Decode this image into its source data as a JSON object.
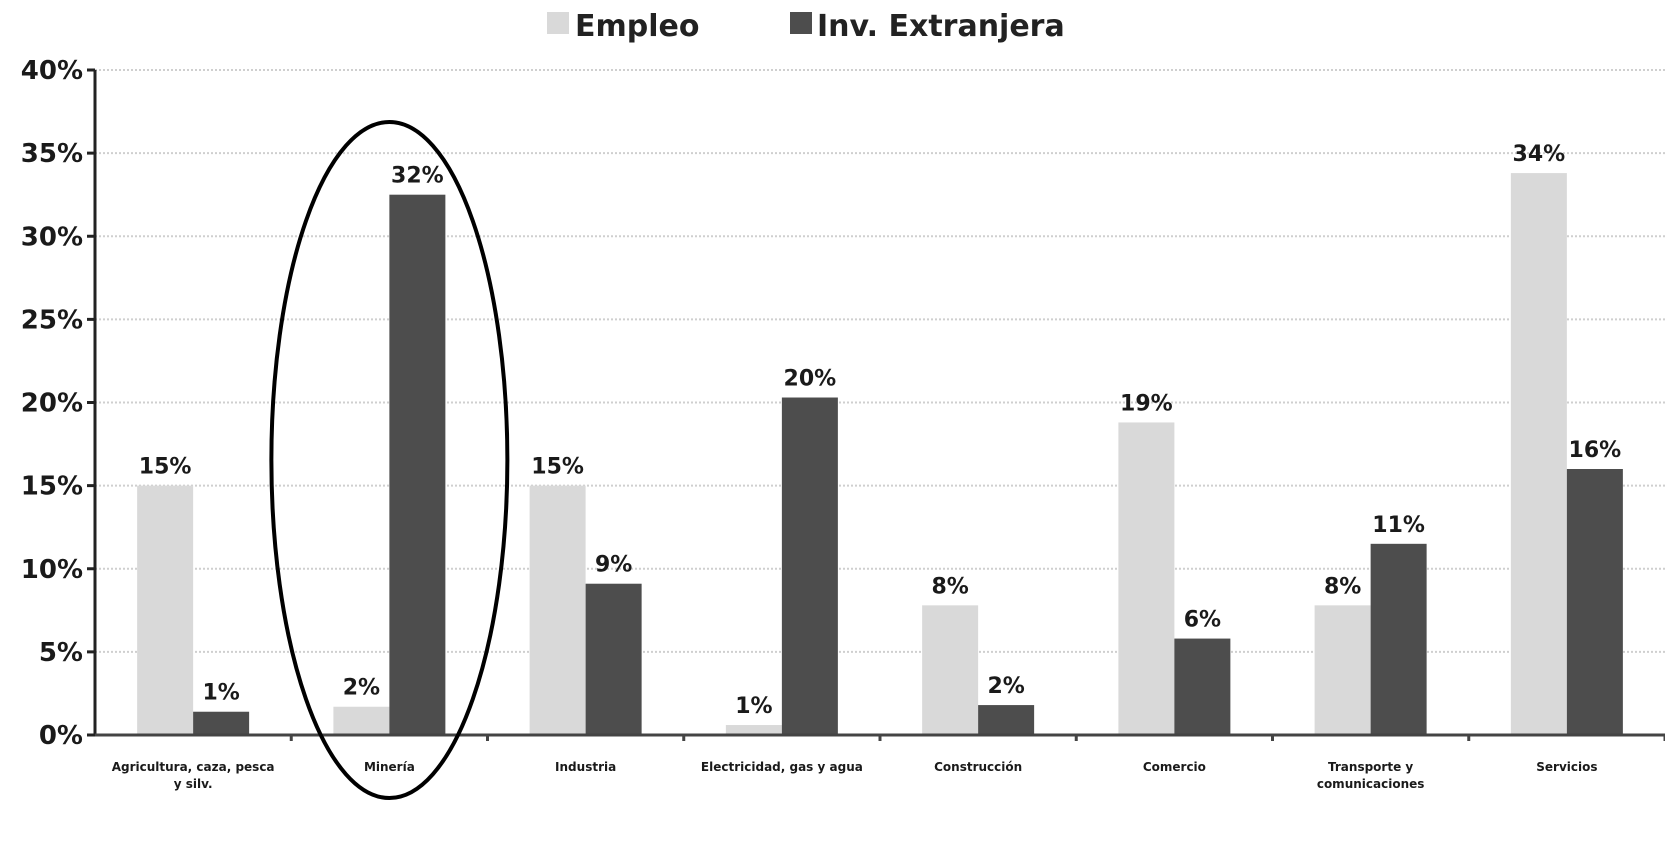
{
  "chart_data": {
    "type": "bar",
    "title": "",
    "xlabel": "",
    "ylabel": "",
    "ylim": [
      0,
      40
    ],
    "yticks": [
      "0%",
      "5%",
      "10%",
      "15%",
      "20%",
      "25%",
      "30%",
      "35%",
      "40%"
    ],
    "grid": true,
    "legend_position": "top-center",
    "categories": [
      [
        "Agricultura, caza, pesca",
        "y silv."
      ],
      [
        "Minería"
      ],
      [
        "Industria"
      ],
      [
        "Electricidad, gas y agua"
      ],
      [
        "Construcción"
      ],
      [
        "Comercio"
      ],
      [
        "Transporte y",
        "comunicaciones"
      ],
      [
        "Servicios"
      ]
    ],
    "series": [
      {
        "name": "Empleo",
        "color": "#d9d9d9",
        "values": [
          15,
          1.7,
          15,
          0.6,
          7.8,
          18.8,
          7.8,
          33.8
        ],
        "labels": [
          "15%",
          "2%",
          "15%",
          "1%",
          "8%",
          "19%",
          "8%",
          "34%"
        ]
      },
      {
        "name": "Inv. Extranjera",
        "color": "#4d4d4d",
        "values": [
          1.4,
          32.5,
          9.1,
          20.3,
          1.8,
          5.8,
          11.5,
          16
        ],
        "labels": [
          "1%",
          "32%",
          "9%",
          "20%",
          "2%",
          "6%",
          "11%",
          "16%"
        ]
      }
    ],
    "highlight": {
      "shape": "ellipse",
      "category_index": 1
    }
  }
}
